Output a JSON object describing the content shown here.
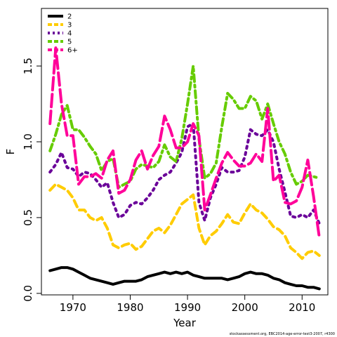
{
  "chart_data": {
    "type": "line",
    "xlabel": "Year",
    "ylabel": "F",
    "xlim": [
      1964.5,
      2014.5
    ],
    "ylim": [
      -0.01,
      1.88
    ],
    "x_ticks": [
      1970,
      1980,
      1990,
      2000,
      2010
    ],
    "y_ticks": [
      0.0,
      0.5,
      1.0,
      1.5
    ],
    "y_tick_labels": [
      "0.0",
      "0.5",
      "1.0",
      "1.5"
    ],
    "legend_position": "top-left",
    "grid": false,
    "credit": "stockassessment.org, EBC2014-age-error-test3-2007, r4300",
    "x": [
      1966,
      1967,
      1968,
      1969,
      1970,
      1971,
      1972,
      1973,
      1974,
      1975,
      1976,
      1977,
      1978,
      1979,
      1980,
      1981,
      1982,
      1983,
      1984,
      1985,
      1986,
      1987,
      1988,
      1989,
      1990,
      1991,
      1992,
      1993,
      1994,
      1995,
      1996,
      1997,
      1998,
      1999,
      2000,
      2001,
      2002,
      2003,
      2004,
      2005,
      2006,
      2007,
      2008,
      2009,
      2010,
      2011,
      2012,
      2013
    ],
    "series": [
      {
        "name": "2",
        "color": "#000000",
        "dash": "solid",
        "values": [
          0.15,
          0.16,
          0.17,
          0.17,
          0.16,
          0.14,
          0.12,
          0.1,
          0.09,
          0.08,
          0.07,
          0.06,
          0.07,
          0.08,
          0.08,
          0.08,
          0.09,
          0.11,
          0.12,
          0.13,
          0.14,
          0.13,
          0.14,
          0.13,
          0.14,
          0.12,
          0.11,
          0.1,
          0.1,
          0.1,
          0.1,
          0.09,
          0.1,
          0.11,
          0.13,
          0.14,
          0.13,
          0.13,
          0.12,
          0.1,
          0.09,
          0.07,
          0.06,
          0.05,
          0.05,
          0.04,
          0.04,
          0.03
        ]
      },
      {
        "name": "3",
        "color": "#ffcc00",
        "dash": "dashed",
        "values": [
          0.68,
          0.72,
          0.7,
          0.68,
          0.63,
          0.55,
          0.55,
          0.5,
          0.48,
          0.5,
          0.43,
          0.32,
          0.3,
          0.32,
          0.33,
          0.29,
          0.31,
          0.36,
          0.41,
          0.43,
          0.4,
          0.45,
          0.52,
          0.59,
          0.62,
          0.65,
          0.43,
          0.32,
          0.38,
          0.41,
          0.46,
          0.52,
          0.47,
          0.46,
          0.53,
          0.59,
          0.55,
          0.53,
          0.49,
          0.44,
          0.42,
          0.38,
          0.3,
          0.27,
          0.23,
          0.27,
          0.28,
          0.25
        ]
      },
      {
        "name": "4",
        "color": "#6a0099",
        "dash": "dotted",
        "values": [
          0.8,
          0.85,
          0.93,
          0.83,
          0.82,
          0.77,
          0.8,
          0.79,
          0.75,
          0.7,
          0.73,
          0.6,
          0.5,
          0.52,
          0.58,
          0.6,
          0.59,
          0.63,
          0.68,
          0.75,
          0.78,
          0.8,
          0.86,
          0.93,
          1.1,
          1.12,
          0.6,
          0.48,
          0.63,
          0.72,
          0.83,
          0.8,
          0.8,
          0.81,
          0.9,
          1.08,
          1.05,
          1.04,
          1.08,
          1.0,
          0.82,
          0.67,
          0.51,
          0.5,
          0.52,
          0.5,
          0.55,
          0.46
        ]
      },
      {
        "name": "5",
        "color": "#66cc00",
        "dash": "dashdot",
        "values": [
          0.94,
          1.05,
          1.18,
          1.24,
          1.08,
          1.08,
          1.03,
          0.97,
          0.92,
          0.81,
          0.87,
          0.89,
          0.7,
          0.72,
          0.74,
          0.82,
          0.85,
          0.84,
          0.83,
          0.87,
          0.98,
          0.9,
          0.87,
          1.02,
          1.25,
          1.5,
          1.02,
          0.76,
          0.79,
          0.86,
          1.1,
          1.32,
          1.28,
          1.22,
          1.22,
          1.3,
          1.27,
          1.15,
          1.25,
          1.12,
          1.0,
          0.92,
          0.8,
          0.72,
          0.74,
          0.78,
          0.77,
          0.76
        ]
      },
      {
        "name": "6+",
        "color": "#ff0099",
        "dash": "longdash",
        "values": [
          1.12,
          1.62,
          1.25,
          1.04,
          1.04,
          0.72,
          0.77,
          0.77,
          0.79,
          0.76,
          0.88,
          0.94,
          0.66,
          0.68,
          0.75,
          0.88,
          0.94,
          0.82,
          0.91,
          0.97,
          1.17,
          1.08,
          0.96,
          0.96,
          1.0,
          1.12,
          1.04,
          0.55,
          0.65,
          0.76,
          0.86,
          0.93,
          0.88,
          0.84,
          0.84,
          0.86,
          0.92,
          0.87,
          1.22,
          0.74,
          0.78,
          0.6,
          0.59,
          0.61,
          0.7,
          0.88,
          0.64,
          0.37
        ]
      }
    ]
  }
}
